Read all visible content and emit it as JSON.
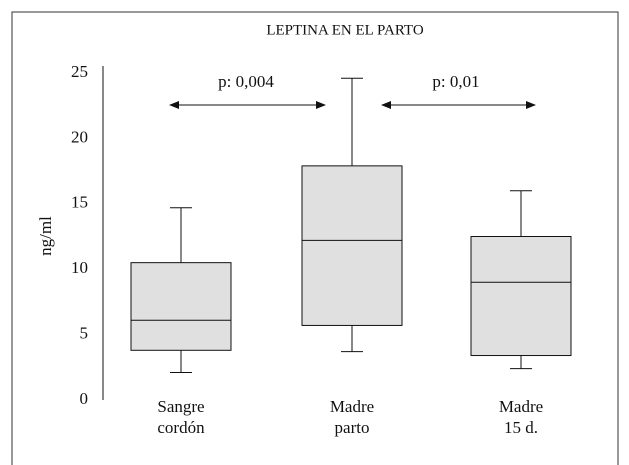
{
  "chart_data": {
    "type": "box",
    "title": "LEPTINA EN EL PARTO",
    "y_label": "ng/ml",
    "categories": [
      [
        "Sangre",
        "cordón"
      ],
      [
        "Madre",
        "parto"
      ],
      [
        "Madre",
        "15 d."
      ]
    ],
    "boxes": [
      {
        "low": 2.1,
        "q1": 3.8,
        "median": 6.1,
        "q3": 10.5,
        "high": 14.7
      },
      {
        "low": 3.7,
        "q1": 5.7,
        "median": 12.2,
        "q3": 17.9,
        "high": 24.6
      },
      {
        "low": 2.4,
        "q1": 3.4,
        "median": 9.0,
        "q3": 12.5,
        "high": 16.0
      }
    ],
    "color": "#e0e0e0",
    "ylim": [
      0,
      25
    ],
    "yticks": [
      0,
      5,
      10,
      15,
      20,
      25
    ],
    "annotations": [
      "p: 0,004",
      "p: 0,01"
    ]
  }
}
